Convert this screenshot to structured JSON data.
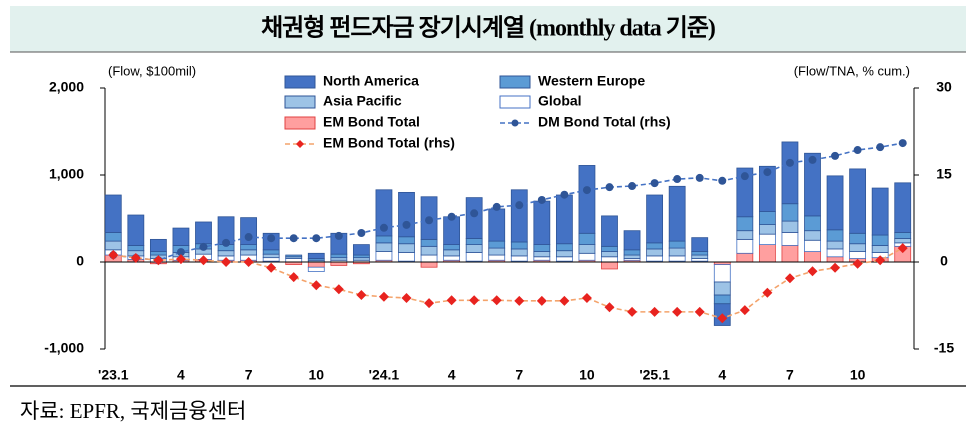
{
  "chart_data": {
    "type": "bar",
    "title": "채권형 펀드자금 장기시계열 (monthly data 기준)",
    "y_label": "(Flow, $100mil)",
    "y2_label": "(Flow/TNA, % cum.)",
    "source": "자료: EPFR, 국제금융센터",
    "categories": [
      "'23.1",
      null,
      null,
      "4",
      null,
      null,
      "7",
      null,
      null,
      "10",
      null,
      null,
      "'24.1",
      null,
      null,
      "4",
      null,
      null,
      "7",
      null,
      null,
      "10",
      null,
      null,
      "'25.1",
      null,
      null,
      "4",
      null,
      null,
      "7",
      null,
      null,
      "10",
      null,
      null
    ],
    "ylim": [
      -1000,
      2000
    ],
    "yticks": [
      {
        "value": -1000,
        "label": "-1,000"
      },
      0,
      {
        "value": 1000,
        "label": "1,000"
      },
      {
        "value": 2000,
        "label": "2,000"
      }
    ],
    "y2lim": [
      -15,
      30
    ],
    "y2ticks": [
      -15,
      0,
      15,
      30
    ],
    "series": [
      {
        "name": "North America",
        "type": "bar",
        "color": "#4472c4",
        "values": [
          430,
          350,
          140,
          200,
          250,
          320,
          310,
          190,
          0,
          60,
          240,
          120,
          530,
          510,
          490,
          320,
          470,
          370,
          600,
          500,
          560,
          780,
          350,
          220,
          550,
          630,
          160,
          -250,
          560,
          520,
          710,
          720,
          620,
          740,
          540,
          570
        ]
      },
      {
        "name": "Western Europe",
        "type": "bar",
        "color": "#5b9bd5",
        "values": [
          100,
          60,
          40,
          80,
          60,
          70,
          60,
          50,
          20,
          20,
          40,
          30,
          80,
          80,
          80,
          60,
          70,
          80,
          80,
          80,
          80,
          130,
          60,
          60,
          70,
          80,
          40,
          -100,
          160,
          150,
          200,
          170,
          130,
          120,
          120,
          70
        ]
      },
      {
        "name": "Asia Pacific",
        "type": "bar",
        "color": "#9dc3e6",
        "values": [
          100,
          60,
          40,
          50,
          60,
          60,
          60,
          40,
          20,
          20,
          30,
          30,
          100,
          100,
          100,
          70,
          90,
          80,
          80,
          60,
          70,
          100,
          60,
          40,
          80,
          90,
          40,
          -150,
          100,
          110,
          130,
          110,
          90,
          90,
          80,
          50
        ]
      },
      {
        "name": "Global",
        "type": "bar",
        "color": "#ffffff",
        "values": [
          60,
          40,
          40,
          40,
          60,
          50,
          60,
          40,
          40,
          -50,
          20,
          20,
          100,
          100,
          80,
          50,
          100,
          60,
          60,
          40,
          50,
          80,
          60,
          20,
          60,
          60,
          30,
          -200,
          160,
          120,
          150,
          130,
          90,
          80,
          60,
          40
        ]
      },
      {
        "name": "EM Bond Total",
        "type": "bar",
        "color": "#ff9f9f",
        "values": [
          80,
          30,
          -20,
          20,
          30,
          20,
          20,
          10,
          -30,
          -60,
          -40,
          -20,
          20,
          10,
          -60,
          20,
          10,
          20,
          10,
          20,
          10,
          20,
          -80,
          20,
          10,
          10,
          10,
          -30,
          100,
          200,
          190,
          120,
          60,
          40,
          50,
          180
        ]
      },
      {
        "name": "DM Bond Total (rhs)",
        "type": "line",
        "axis": "y2",
        "color": "#4472c4",
        "marker": "circle",
        "values": [
          1.2,
          0.7,
          0.3,
          1.7,
          2.6,
          3.3,
          4.3,
          4.1,
          4.1,
          4.1,
          4.5,
          5.0,
          5.9,
          6.4,
          7.2,
          7.8,
          8.4,
          9.5,
          9.8,
          10.7,
          11.6,
          12.4,
          12.9,
          13.1,
          13.6,
          14.3,
          14.5,
          14.0,
          14.8,
          15.5,
          17.1,
          17.6,
          18.3,
          19.3,
          19.8,
          20.5
        ]
      },
      {
        "name": "EM Bond Total (rhs)",
        "type": "line",
        "axis": "y2",
        "color": "#f4a36b",
        "marker": "diamond",
        "values": [
          1.2,
          0.7,
          0.3,
          0.5,
          0.3,
          0,
          0,
          -1.0,
          -2.6,
          -4.0,
          -4.7,
          -5.7,
          -6.0,
          -6.2,
          -7.1,
          -6.6,
          -6.6,
          -6.6,
          -6.7,
          -6.7,
          -6.7,
          -6.2,
          -7.8,
          -8.6,
          -8.6,
          -8.6,
          -8.6,
          -9.7,
          -8.3,
          -5.3,
          -2.8,
          -1.6,
          -1.0,
          -0.3,
          0.3,
          2.4
        ]
      }
    ],
    "stack_order": [
      "EM Bond Total",
      "Global",
      "Asia Pacific",
      "Western Europe",
      "North America"
    ]
  }
}
